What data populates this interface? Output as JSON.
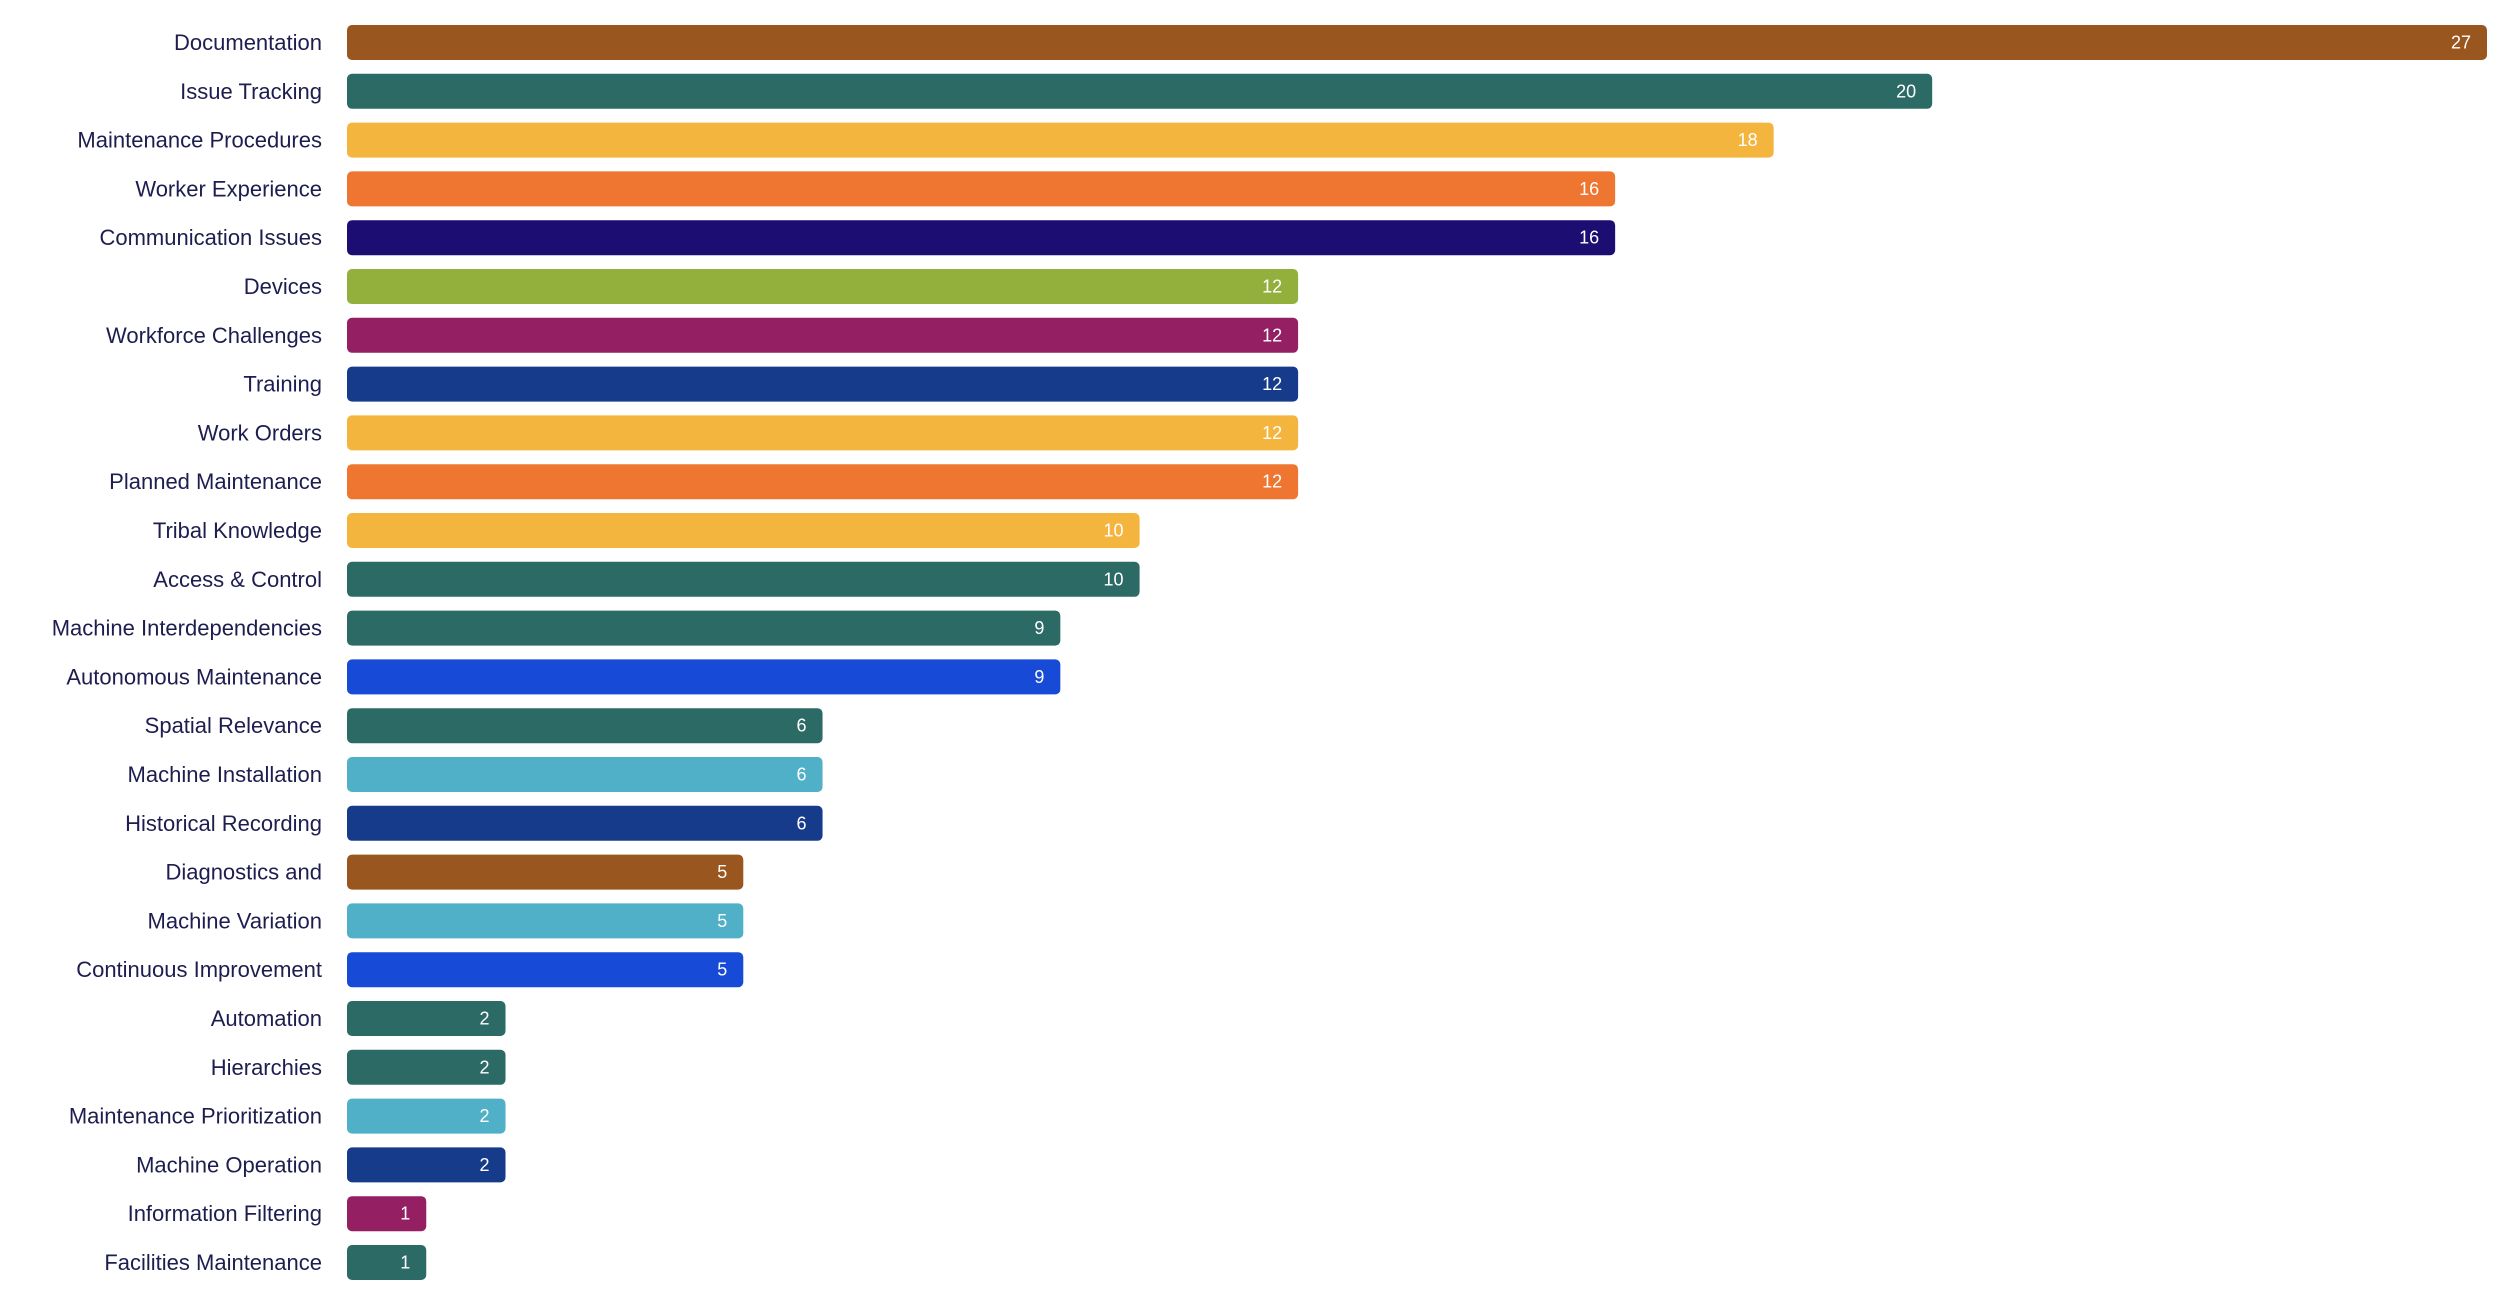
{
  "chart_data": {
    "type": "bar",
    "orientation": "horizontal",
    "categories": [
      "Documentation",
      "Issue Tracking",
      "Maintenance Procedures",
      "Worker Experience",
      "Communication Issues",
      "Devices",
      "Workforce Challenges",
      "Training",
      "Work Orders",
      "Planned Maintenance",
      "Tribal Knowledge",
      "Access & Control",
      "Machine Interdependencies",
      "Autonomous Maintenance",
      "Spatial Relevance",
      "Machine Installation",
      "Historical Recording",
      "Diagnostics and",
      "Machine Variation",
      "Continuous Improvement",
      "Automation",
      "Hierarchies",
      "Maintenance Prioritization",
      "Machine Operation",
      "Information Filtering",
      "Facilities Maintenance"
    ],
    "values": [
      27,
      20,
      18,
      16,
      16,
      12,
      12,
      12,
      12,
      12,
      10,
      10,
      9,
      9,
      6,
      6,
      6,
      5,
      5,
      5,
      2,
      2,
      2,
      2,
      1,
      1
    ],
    "colors": [
      "#99561f",
      "#2c6a66",
      "#f4b53f",
      "#ee7630",
      "#1c0d72",
      "#93b03d",
      "#941f63",
      "#163b8b",
      "#f4b53f",
      "#ee7630",
      "#f4b53f",
      "#2c6a66",
      "#2c6a66",
      "#174ad6",
      "#2c6a66",
      "#4fb0c8",
      "#163b8b",
      "#99561f",
      "#4fb0c8",
      "#174ad6",
      "#2c6a66",
      "#2c6a66",
      "#4fb0c8",
      "#163b8b",
      "#941f63",
      "#2c6a66"
    ],
    "title": "",
    "xlabel": "",
    "ylabel": "",
    "xlim": [
      0,
      27
    ],
    "grid": false,
    "legend": "none"
  }
}
